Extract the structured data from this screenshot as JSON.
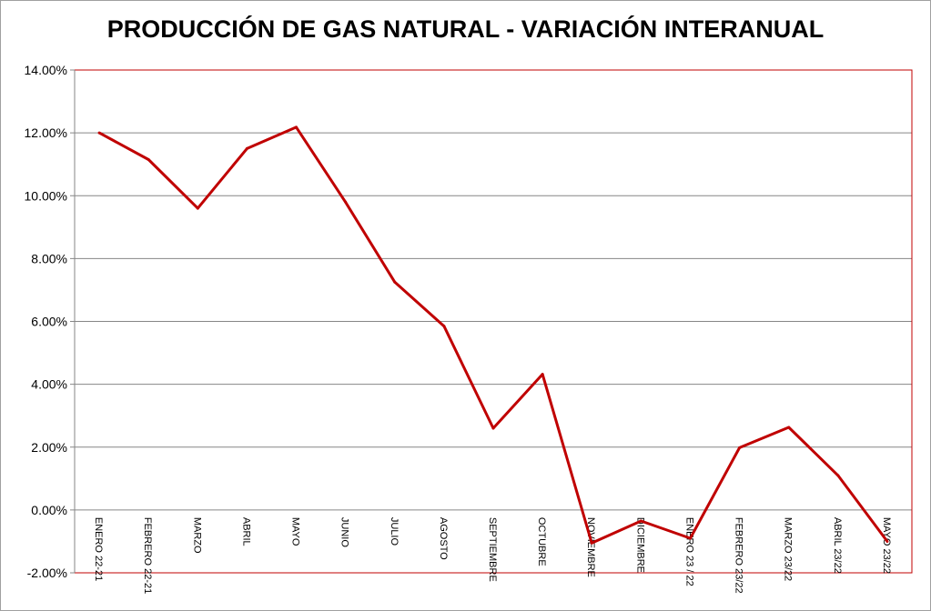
{
  "chart_data": {
    "type": "line",
    "title": "PRODUCCIÓN DE GAS NATURAL - VARIACIÓN INTERANUAL",
    "xlabel": "",
    "ylabel": "",
    "categories": [
      "ENERO 22-21",
      "FEBRERO 22-21",
      "MARZO",
      "ABRIL",
      "MAYO",
      "JUNIO",
      "JULIO",
      "AGOSTO",
      "SEPTIEMBRE",
      "OCTUBRE",
      "NOVIEMBRE",
      "DICIEMBRE",
      "ENERO 23 / 22",
      "FEBRERO 23/22",
      "MARZO 23/22",
      "ABRIL 23/22",
      "MAYO 23/22"
    ],
    "series": [
      {
        "values": [
          12.0,
          11.15,
          9.6,
          11.5,
          12.18,
          9.8,
          7.25,
          5.85,
          2.6,
          4.32,
          -1.05,
          -0.35,
          -0.9,
          1.98,
          2.63,
          1.1,
          -1.0
        ],
        "color": "#c00000"
      }
    ],
    "ylim": [
      -2,
      14
    ],
    "yticks": [
      "-2.00%",
      "0.00%",
      "2.00%",
      "4.00%",
      "6.00%",
      "8.00%",
      "10.00%",
      "12.00%",
      "14.00%"
    ],
    "grid": true,
    "legend": "none"
  }
}
